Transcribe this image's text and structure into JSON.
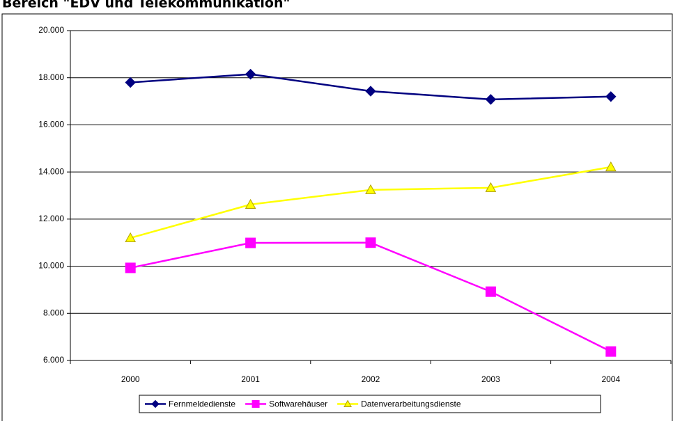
{
  "chart_data": {
    "type": "line",
    "title": "Bereich \"EDV und Telekommunikation\"",
    "categories": [
      "2000",
      "2001",
      "2002",
      "2003",
      "2004"
    ],
    "series": [
      {
        "name": "Fernmeldedienste",
        "color": "#000080",
        "marker": "diamond",
        "values": [
          17800,
          18150,
          17430,
          17080,
          17200
        ]
      },
      {
        "name": "Softwarehäuser",
        "color": "#ff00ff",
        "marker": "square",
        "values": [
          9930,
          10990,
          11000,
          8920,
          6380
        ]
      },
      {
        "name": "Datenverarbeitungsdienste",
        "color": "#ffff00",
        "marker": "triangle",
        "values": [
          11200,
          12620,
          13240,
          13330,
          14210
        ]
      }
    ],
    "ylim": [
      6000,
      20000
    ],
    "yticks": [
      {
        "value": 6000,
        "label": "6.000"
      },
      {
        "value": 8000,
        "label": "8.000"
      },
      {
        "value": 10000,
        "label": "10.000"
      },
      {
        "value": 12000,
        "label": "12.000"
      },
      {
        "value": 14000,
        "label": "14.000"
      },
      {
        "value": 16000,
        "label": "16.000"
      },
      {
        "value": 18000,
        "label": "18.000"
      },
      {
        "value": 20000,
        "label": "20.000"
      }
    ],
    "grid": true,
    "legend": "bottom"
  }
}
